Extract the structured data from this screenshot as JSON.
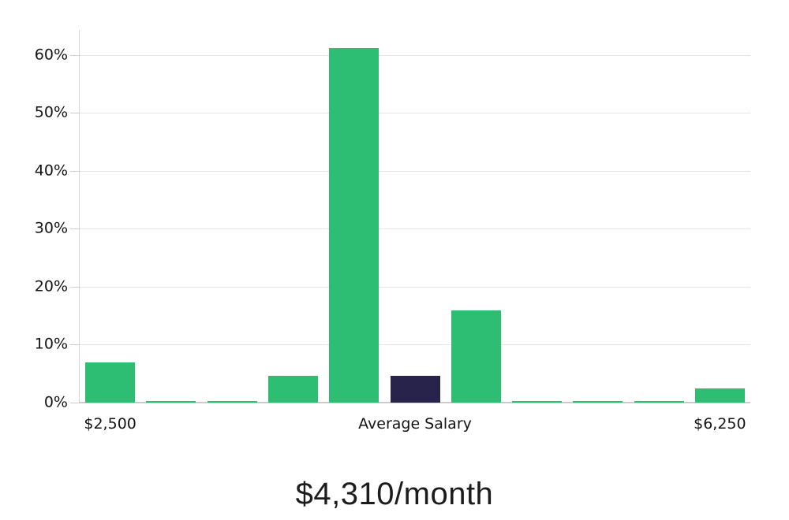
{
  "title_caption": "$4,310/month",
  "chart_data": {
    "type": "bar",
    "title": "$4,310/month",
    "xlabel": "",
    "ylabel": "",
    "categories": [
      "$2,500",
      "",
      "",
      "",
      "",
      "Average Salary",
      "",
      "",
      "",
      "",
      "$6,250"
    ],
    "values": [
      7.0,
      0.25,
      0.25,
      4.6,
      61.2,
      4.6,
      15.9,
      0.25,
      0.25,
      0.25,
      2.5
    ],
    "bar_color_keys": [
      "green",
      "green",
      "green",
      "green",
      "green",
      "navy",
      "green",
      "green",
      "green",
      "green",
      "green"
    ],
    "palette": {
      "green": "#2DBE73",
      "navy": "#27234A"
    },
    "highlight_index": 5,
    "highlight_meaning": "average-salary-bin",
    "x_tick_labels": [
      {
        "index": 0,
        "label": "$2,500"
      },
      {
        "index": 5,
        "label": "Average Salary"
      },
      {
        "index": 10,
        "label": "$6,250"
      }
    ],
    "y_ticks": [
      0,
      10,
      20,
      30,
      40,
      50,
      60
    ],
    "y_tick_suffix": "%",
    "ylim": [
      0,
      64.3
    ],
    "grid": true,
    "legend_position": "none",
    "axis_text_color": "#141414",
    "gridline_color": "#e4e4e4",
    "baseline_color": "#cccccc"
  }
}
